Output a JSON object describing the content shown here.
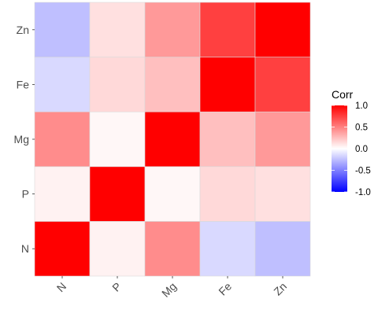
{
  "chart_data": {
    "type": "heatmap",
    "title": "",
    "xlabel": "",
    "ylabel": "",
    "x_categories": [
      "N",
      "P",
      "Mg",
      "Fe",
      "Zn"
    ],
    "y_categories": [
      "N",
      "P",
      "Mg",
      "Fe",
      "Zn"
    ],
    "values": [
      [
        1.0,
        0.05,
        0.45,
        -0.15,
        -0.25
      ],
      [
        0.05,
        1.0,
        0.03,
        0.15,
        0.12
      ],
      [
        0.45,
        0.03,
        1.0,
        0.25,
        0.4
      ],
      [
        -0.15,
        0.15,
        0.25,
        1.0,
        0.75
      ],
      [
        -0.25,
        0.12,
        0.4,
        0.75,
        1.0
      ]
    ],
    "legend": {
      "title": "Corr",
      "position": "right",
      "ticks": [
        1.0,
        0.5,
        0.0,
        -0.5,
        -1.0
      ],
      "tick_labels": [
        "1.0",
        "0.5",
        "0.0",
        "-0.5",
        "-1.0"
      ],
      "low_color": "#0000ff",
      "mid_color": "#ffffff",
      "high_color": "#ff0000",
      "limits": [
        -1,
        1
      ]
    },
    "grid": false,
    "panel_background": "#ebebeb"
  }
}
